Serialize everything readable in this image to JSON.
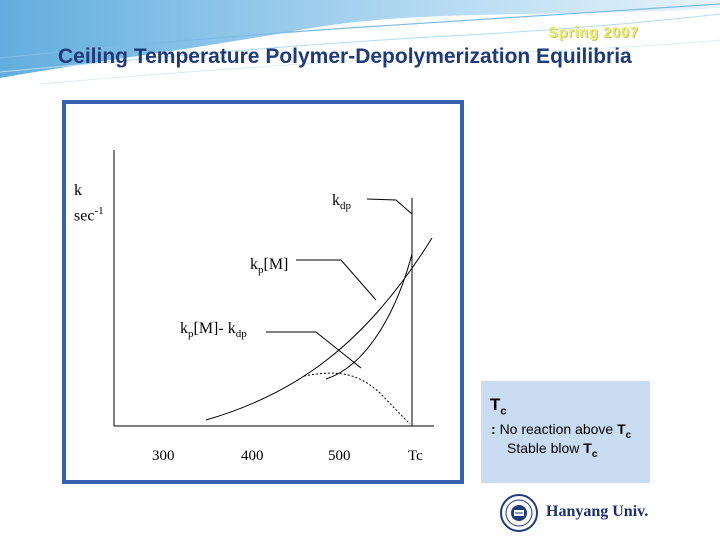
{
  "header": {
    "season": "Spring 2007",
    "title": "Ceiling Temperature Polymer-Depolymerization Equilibria"
  },
  "graph": {
    "y_axis": {
      "symbol": "k",
      "unit": "sec",
      "unit_exp": "-1"
    },
    "labels": {
      "kdp": {
        "main": "k",
        "sub": "dp"
      },
      "kpM": {
        "main": "k",
        "sub": "p",
        "rest": "[M]"
      },
      "net": {
        "main": "k",
        "sub": "p",
        "rest": "[M]- k",
        "sub2": "dp"
      }
    },
    "x_ticks": [
      "300",
      "400",
      "500",
      "Tc"
    ]
  },
  "note": {
    "symbol_main": "T",
    "symbol_sub": "c",
    "prefix": ":",
    "line1_text": "No reaction above",
    "line2_text": "Stable blow",
    "symbol": "T",
    "symbol_sub_c": "c"
  },
  "footer": {
    "university": "Hanyang Univ."
  },
  "colors": {
    "title": "#1e3a78",
    "panel_border": "#3a5fb0",
    "note_bg": "#c9dcf2",
    "season": "#e9ec7a"
  }
}
